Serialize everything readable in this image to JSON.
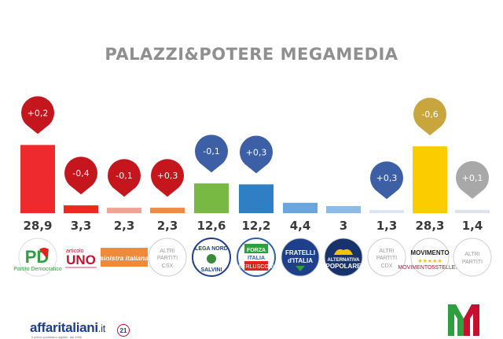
{
  "title": "PALAZZI&POTERE MEGAMEDIA",
  "chart_data": {
    "type": "bar",
    "categories": [
      "PD",
      "Articolo UNO",
      "Sinistra Italiana",
      "Altri Partiti CSX",
      "Lega Nord",
      "Forza Italia",
      "Fratelli d'Italia",
      "Alternativa Popolare",
      "Altri Partiti CDX",
      "Movimento 5 Stelle",
      "Altri Partiti"
    ],
    "value_labels": [
      "28,9",
      "3,3",
      "2,3",
      "2,3",
      "12,6",
      "12,2",
      "4,4",
      "3",
      "1,3",
      "28,3",
      "1,4"
    ],
    "values": [
      28.9,
      3.3,
      2.3,
      2.3,
      12.6,
      12.2,
      4.4,
      3,
      1.3,
      28.3,
      1.4
    ],
    "changes": [
      "+0,2",
      "-0,4",
      "-0,1",
      "+0,3",
      "-0,1",
      "+0,3",
      null,
      null,
      "+0,3",
      "-0,6",
      "+0,1"
    ],
    "bar_colors": [
      "#ee2a2d",
      "#ea2a1d",
      "#f3a392",
      "#f08a43",
      "#78b944",
      "#2f7fc4",
      "#6aa6dd",
      "#8cbbe8",
      "#d8e5f4",
      "#fbcd00",
      "#dde3ea"
    ],
    "pin_colors": [
      "#c4161c",
      "#c4161c",
      "#c4161c",
      "#c4161c",
      "#3d5fa6",
      "#3d5fa6",
      null,
      null,
      "#3d5fa6",
      "#c9a53e",
      "#a8a8a8"
    ],
    "ylim": [
      0,
      30
    ]
  },
  "logos": {
    "pd": {
      "main": "PD",
      "sub": "Partito Democratico"
    },
    "uno": {
      "top": "articolo",
      "main": "UNO"
    },
    "si": {
      "main": "sinistra italiana"
    },
    "altri_csx": {
      "l1": "ALTRI",
      "l2": "PARTITI",
      "l3": "CSX"
    },
    "lega": {
      "l1": "LEGA NORD",
      "l2": "SALVINI"
    },
    "fi": {
      "l1": "FORZA",
      "l2": "ITALIA",
      "l3": "BERLUSCONI"
    },
    "fdi": {
      "l1": "FRATELLI",
      "l2": "d'ITALIA"
    },
    "ap": {
      "l1": "ALTERNATIVA",
      "l2": "POPOLARE"
    },
    "altri_cdx": {
      "l1": "ALTRI",
      "l2": "PARTITI",
      "l3": "CDX"
    },
    "m5s": {
      "l1": "MOVIMENTO",
      "l2": "★★★★★",
      "l3": "MOVIMENTO5STELLE.IT"
    },
    "altri": {
      "l1": "ALTRI",
      "l2": "PARTITI"
    }
  },
  "footer": {
    "brand": "affaritaliani",
    "brand_suffix": ".it",
    "badge": "21",
    "tagline": "Il primo quotidiano digitale, dal 1996"
  }
}
